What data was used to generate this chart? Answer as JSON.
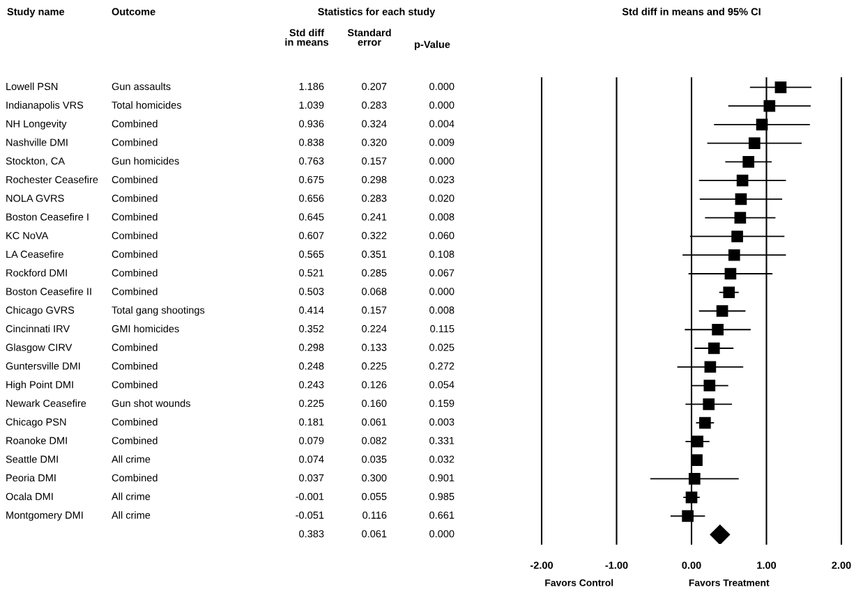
{
  "chart_data": [
    {
      "type": "other",
      "title": "Study name",
      "annotations": [
        "Lowell PSN",
        "Indianapolis VRS",
        "NH Longevity",
        "Nashville DMI",
        "Stockton, CA",
        "Rochester Ceasefire",
        "NOLA GVRS",
        "Boston Ceasefire I",
        "KC NoVA",
        "LA Ceasefire",
        "Rockford DMI",
        "Boston Ceasefire II",
        "Chicago GVRS",
        "Cincinnati IRV",
        "Glasgow CIRV",
        "Guntersville DMI",
        "High Point DMI",
        "Newark Ceasefire",
        "Chicago PSN",
        "Roanoke DMI",
        "Seattle DMI",
        "Peoria DMI",
        "Ocala DMI",
        "Montgomery DMI"
      ]
    },
    {
      "type": "other",
      "title": "Outcome",
      "annotations": [
        "Gun assaults",
        "Total homicides",
        "Combined",
        "Combined",
        "Gun homicides",
        "Combined",
        "Combined",
        "Combined",
        "Combined",
        "Combined",
        "Combined",
        "Combined",
        "Total gang shootings",
        "GMI homicides",
        "Combined",
        "Combined",
        "Combined",
        "Gun shot wounds",
        "Combined",
        "Combined",
        "All crime",
        "Combined",
        "All crime",
        "All crime"
      ]
    },
    {
      "type": "other",
      "title": "Statistics for each study"
    },
    {
      "type": "other",
      "title": "Std diff\nin means",
      "annotations": [
        "1.186",
        "1.039",
        "0.936",
        "0.838",
        "0.763",
        "0.675",
        "0.656",
        "0.645",
        "0.607",
        "0.565",
        "0.521",
        "0.503",
        "0.414",
        "0.352",
        "0.298",
        "0.248",
        "0.243",
        "0.225",
        "0.181",
        "0.079",
        "0.074",
        "0.037",
        "-0.001",
        "-0.051",
        "0.383"
      ]
    },
    {
      "type": "other",
      "title": "Standard\nerror",
      "annotations": [
        "0.207",
        "0.283",
        "0.324",
        "0.320",
        "0.157",
        "0.298",
        "0.283",
        "0.241",
        "0.322",
        "0.351",
        "0.285",
        "0.068",
        "0.157",
        "0.224",
        "0.133",
        "0.225",
        "0.126",
        "0.160",
        "0.061",
        "0.082",
        "0.035",
        "0.300",
        "0.055",
        "0.116",
        "0.061"
      ]
    },
    {
      "type": "other",
      "title": "p-Value",
      "annotations": [
        "0.000",
        "0.000",
        "0.004",
        "0.009",
        "0.000",
        "0.023",
        "0.020",
        "0.008",
        "0.060",
        "0.108",
        "0.067",
        "0.000",
        "0.008",
        "0.115",
        "0.025",
        "0.272",
        "0.054",
        "0.159",
        "0.003",
        "0.331",
        "0.032",
        "0.901",
        "0.985",
        "0.661",
        "0.000"
      ]
    },
    {
      "type": "scatter",
      "orientation": "horizontal",
      "title": "Std diff in means and 95% CI",
      "categories": [
        null,
        null,
        null,
        null,
        null,
        null,
        null,
        null,
        null,
        null,
        null,
        null,
        null,
        null,
        null,
        null,
        null,
        null,
        null,
        null,
        null,
        null,
        null,
        null,
        null
      ],
      "series": [
        {
          "color": "#000000",
          "marker": "square",
          "values": [
            1.19,
            1.04,
            0.94,
            0.84,
            0.76,
            0.68,
            0.66,
            0.65,
            0.61,
            0.57,
            0.52,
            0.5,
            0.41,
            0.35,
            0.3,
            0.25,
            0.24,
            0.23,
            0.18,
            0.08,
            0.07,
            0.04,
            0.0,
            -0.05,
            null
          ],
          "errors": [
            0.41,
            0.55,
            0.64,
            0.63,
            0.31,
            0.58,
            0.55,
            0.47,
            0.63,
            0.69,
            0.56,
            0.13,
            0.31,
            0.44,
            0.26,
            0.44,
            0.25,
            0.31,
            0.12,
            0.16,
            0.07,
            0.59,
            0.11,
            0.23,
            null
          ]
        },
        {
          "color": "#000000",
          "marker": "diamond",
          "values": [
            null,
            null,
            null,
            null,
            null,
            null,
            null,
            null,
            null,
            null,
            null,
            null,
            null,
            null,
            null,
            null,
            null,
            null,
            null,
            null,
            null,
            null,
            null,
            null,
            0.38
          ]
        }
      ],
      "xlim": [
        -2,
        2
      ],
      "xticks": [
        {
          "value": -2,
          "label": "-2.00"
        },
        {
          "value": -1,
          "label": "-1.00"
        },
        {
          "value": 0,
          "label": "0.00"
        },
        {
          "value": 1,
          "label": "1.00"
        },
        {
          "value": 2,
          "label": "2.00"
        }
      ],
      "grid": "x",
      "tick_labels": "x",
      "annotations": [
        "Favors Control",
        "Favors Treatment"
      ]
    }
  ]
}
